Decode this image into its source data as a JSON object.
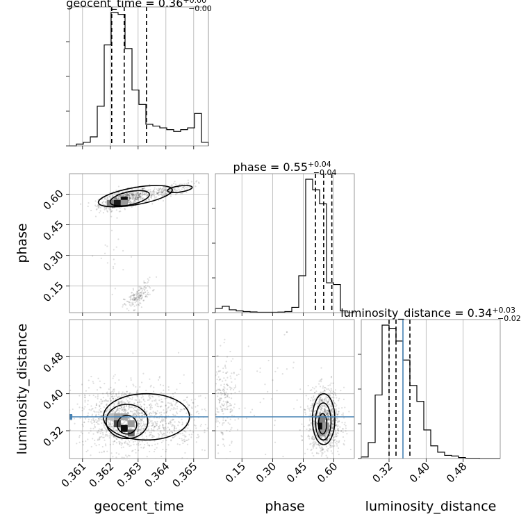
{
  "chart_data": {
    "type": "scatter",
    "plot_kind": "corner",
    "parameters": [
      "geocent_time",
      "phase",
      "luminosity_distance"
    ],
    "axis_labels": {
      "geocent_time": "geocent_time",
      "phase": "phase",
      "luminosity_distance": "luminosity_distance"
    },
    "titles": [
      {
        "param": "geocent_time",
        "base": "geocent_time = 0.36",
        "plus": "+0.00",
        "minus": "−0.00"
      },
      {
        "param": "phase",
        "base": "phase = 0.55",
        "plus": "+0.04",
        "minus": "−0.04"
      },
      {
        "param": "luminosity_distance",
        "base": "luminosity_distance = 0.34",
        "plus": "+0.03",
        "minus": "−0.02"
      }
    ],
    "ranges": {
      "geocent_time": [
        0.36053,
        0.36553
      ],
      "phase": [
        0.02,
        0.7
      ],
      "luminosity_distance": [
        0.26,
        0.56
      ]
    },
    "ticks": {
      "geocent_time": [
        {
          "v": 0.361,
          "label": "0.361"
        },
        {
          "v": 0.362,
          "label": "0.362"
        },
        {
          "v": 0.363,
          "label": "0.363"
        },
        {
          "v": 0.364,
          "label": "0.364"
        },
        {
          "v": 0.365,
          "label": "0.365"
        }
      ],
      "phase": [
        {
          "v": 0.15,
          "label": "0.15"
        },
        {
          "v": 0.3,
          "label": "0.30"
        },
        {
          "v": 0.45,
          "label": "0.45"
        },
        {
          "v": 0.6,
          "label": "0.60"
        }
      ],
      "luminosity_distance": [
        {
          "v": 0.32,
          "label": "0.32"
        },
        {
          "v": 0.4,
          "label": "0.40"
        },
        {
          "v": 0.48,
          "label": "0.48"
        }
      ]
    },
    "truth": {
      "luminosity_distance": 0.35
    },
    "histograms": {
      "geocent_time": {
        "edges": [
          0.36053,
          0.36078,
          0.36103,
          0.36128,
          0.36153,
          0.36178,
          0.36203,
          0.36228,
          0.36253,
          0.36278,
          0.36303,
          0.36328,
          0.36353,
          0.36378,
          0.36403,
          0.36428,
          0.36453,
          0.36478,
          0.36503,
          0.36528,
          0.36553
        ],
        "values": [
          0.0,
          0.5,
          1.0,
          2.5,
          11.0,
          28.0,
          37.0,
          36.5,
          27.0,
          15.5,
          11.5,
          6.0,
          5.5,
          5.0,
          4.5,
          4.0,
          4.5,
          5.0,
          9.0,
          1.0
        ],
        "quantiles": [
          0.36205,
          0.3625,
          0.3633
        ]
      },
      "phase": {
        "edges": [
          0.02,
          0.054,
          0.088,
          0.122,
          0.156,
          0.19,
          0.224,
          0.258,
          0.292,
          0.326,
          0.36,
          0.394,
          0.428,
          0.462,
          0.496,
          0.53,
          0.564,
          0.598,
          0.632,
          0.666,
          0.7
        ],
        "values": [
          1.2,
          1.8,
          0.8,
          0.5,
          0.3,
          0.2,
          0.1,
          0.1,
          0.1,
          0.15,
          0.3,
          1.5,
          10.5,
          38.0,
          35.0,
          31.0,
          8.5,
          8.0,
          0.5,
          0.0
        ],
        "quantiles": [
          0.51,
          0.55,
          0.59
        ]
      },
      "luminosity_distance": {
        "edges": [
          0.26,
          0.275,
          0.29,
          0.305,
          0.32,
          0.335,
          0.35,
          0.365,
          0.38,
          0.395,
          0.41,
          0.425,
          0.44,
          0.455,
          0.47,
          0.485,
          0.5,
          0.515,
          0.53,
          0.545,
          0.56
        ],
        "values": [
          0.5,
          5.0,
          20.0,
          42.0,
          41.0,
          37.0,
          31.0,
          23.0,
          18.0,
          9.0,
          4.0,
          2.0,
          1.0,
          0.8,
          0.3,
          0.1,
          0.1,
          0.0,
          0.0,
          0.0
        ],
        "quantiles": [
          0.32,
          0.335,
          0.365
        ]
      }
    },
    "pairs": [
      {
        "x": "geocent_time",
        "y": "phase",
        "clusters": [
          {
            "cx": 0.3625,
            "cy": 0.575,
            "sx": 0.00045,
            "sy": 0.025,
            "rho": 0.55,
            "n": 600
          },
          {
            "cx": 0.364,
            "cy": 0.615,
            "sx": 0.0005,
            "sy": 0.022,
            "rho": 0.7,
            "n": 220
          },
          {
            "cx": 0.363,
            "cy": 0.1,
            "sx": 0.00025,
            "sy": 0.035,
            "rho": 0.7,
            "n": 160
          },
          {
            "cx": 0.362,
            "cy": 0.3,
            "sx": 0.0005,
            "sy": 0.08,
            "rho": 0.0,
            "n": 20
          }
        ],
        "hot": [
          {
            "x": 0.36225,
            "y": 0.555,
            "level": 0.9
          },
          {
            "x": 0.3625,
            "y": 0.57,
            "level": 0.95
          },
          {
            "x": 0.362,
            "y": 0.555,
            "level": 0.5
          },
          {
            "x": 0.3625,
            "y": 0.555,
            "level": 0.4
          }
        ],
        "contours": [
          {
            "cx": 0.3627,
            "cy": 0.58,
            "rx": 0.00072,
            "ry": 0.032,
            "rot": -12
          },
          {
            "cx": 0.3629,
            "cy": 0.59,
            "rx": 0.00135,
            "ry": 0.042,
            "rot": -10
          },
          {
            "cx": 0.3645,
            "cy": 0.625,
            "rx": 0.00045,
            "ry": 0.015,
            "rot": -8
          }
        ]
      },
      {
        "x": "geocent_time",
        "y": "luminosity_distance",
        "clusters": [
          {
            "cx": 0.3625,
            "cy": 0.345,
            "sx": 0.0008,
            "sy": 0.035,
            "rho": -0.1,
            "n": 1100
          },
          {
            "cx": 0.3642,
            "cy": 0.345,
            "sx": 0.0007,
            "sy": 0.04,
            "rho": 0.0,
            "n": 260
          }
        ],
        "hot": [
          {
            "x": 0.36225,
            "y": 0.335,
            "level": 0.7
          },
          {
            "x": 0.3625,
            "y": 0.325,
            "level": 0.95
          },
          {
            "x": 0.36275,
            "y": 0.315,
            "level": 0.6
          },
          {
            "x": 0.36225,
            "y": 0.35,
            "level": 0.35
          },
          {
            "x": 0.3625,
            "y": 0.35,
            "level": 0.35
          },
          {
            "x": 0.362,
            "y": 0.35,
            "level": 0.25
          },
          {
            "x": 0.36275,
            "y": 0.335,
            "level": 0.4
          }
        ],
        "contours": [
          {
            "cx": 0.3626,
            "cy": 0.333,
            "rx": 0.00035,
            "ry": 0.02,
            "rot": 0
          },
          {
            "cx": 0.3626,
            "cy": 0.34,
            "rx": 0.00075,
            "ry": 0.037,
            "rot": 0
          },
          {
            "cx": 0.3633,
            "cy": 0.35,
            "rx": 0.00155,
            "ry": 0.05,
            "rot": 0
          }
        ]
      },
      {
        "x": "phase",
        "y": "luminosity_distance",
        "clusters": [
          {
            "cx": 0.555,
            "cy": 0.34,
            "sx": 0.04,
            "sy": 0.035,
            "rho": 0.0,
            "n": 1000
          },
          {
            "cx": 0.06,
            "cy": 0.38,
            "sx": 0.03,
            "sy": 0.05,
            "rho": 0.0,
            "n": 220
          },
          {
            "cx": 0.3,
            "cy": 0.4,
            "sx": 0.1,
            "sy": 0.06,
            "rho": 0.0,
            "n": 40
          }
        ],
        "hot": [
          {
            "x": 0.54,
            "y": 0.33,
            "level": 0.95
          },
          {
            "x": 0.54,
            "y": 0.345,
            "level": 0.5
          },
          {
            "x": 0.56,
            "y": 0.33,
            "level": 0.4
          },
          {
            "x": 0.54,
            "y": 0.315,
            "level": 0.4
          }
        ],
        "contours": [
          {
            "cx": 0.545,
            "cy": 0.335,
            "rx": 0.02,
            "ry": 0.022,
            "rot": 0
          },
          {
            "cx": 0.548,
            "cy": 0.34,
            "rx": 0.038,
            "ry": 0.04,
            "rot": 0
          },
          {
            "cx": 0.55,
            "cy": 0.345,
            "rx": 0.055,
            "ry": 0.055,
            "rot": 0
          }
        ]
      }
    ]
  }
}
